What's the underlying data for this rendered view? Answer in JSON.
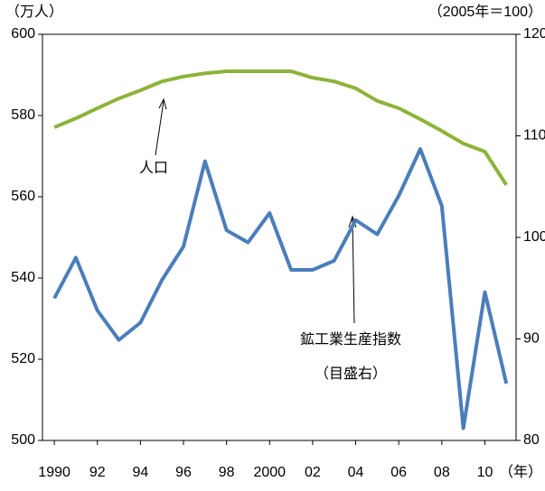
{
  "chart_data": {
    "type": "line",
    "y_label": "（万人）",
    "y2_label": "（2005年＝100）",
    "x_label": "（年）",
    "x": [
      1990,
      1991,
      1992,
      1993,
      1994,
      1995,
      1996,
      1997,
      1998,
      1999,
      2000,
      2001,
      2002,
      2003,
      2004,
      2005,
      2006,
      2007,
      2008,
      2009,
      2010,
      2011
    ],
    "series": [
      {
        "name": "人口",
        "color": "#8db33a",
        "values": [
          577.1,
          579.3,
          581.8,
          584.2,
          586.2,
          588.4,
          589.6,
          590.4,
          590.9,
          590.9,
          590.9,
          590.9,
          589.3,
          588.4,
          586.7,
          583.6,
          581.8,
          579.1,
          576.2,
          573.1,
          571.1,
          562.9
        ]
      },
      {
        "name": "鉱工業生産指数",
        "color": "#4a7ebb",
        "axis": "y2",
        "values": [
          94.0,
          98.0,
          92.8,
          89.9,
          91.6,
          95.8,
          99.1,
          107.5,
          100.7,
          99.5,
          102.4,
          96.8,
          96.8,
          97.7,
          101.7,
          100.3,
          104.1,
          108.7,
          103.1,
          81.2,
          94.6,
          85.6
        ]
      }
    ],
    "annotation": "（目盛右）",
    "xlim": [
      1989.45,
      2011.45
    ],
    "xticks": [
      {
        "value": 1990,
        "label": "1990"
      },
      {
        "value": 1992,
        "label": "92"
      },
      {
        "value": 1994,
        "label": "94"
      },
      {
        "value": 1996,
        "label": "96"
      },
      {
        "value": 1998,
        "label": "98"
      },
      {
        "value": 2000,
        "label": "2000"
      },
      {
        "value": 2002,
        "label": "02"
      },
      {
        "value": 2004,
        "label": "04"
      },
      {
        "value": 2006,
        "label": "06"
      },
      {
        "value": 2008,
        "label": "08"
      },
      {
        "value": 2010,
        "label": "10"
      }
    ],
    "ylim": [
      500,
      600
    ],
    "yticks": [
      500,
      520,
      540,
      560,
      580,
      600
    ],
    "y2lim": [
      80,
      120
    ],
    "y2ticks": [
      80,
      90,
      100,
      110,
      120
    ]
  }
}
